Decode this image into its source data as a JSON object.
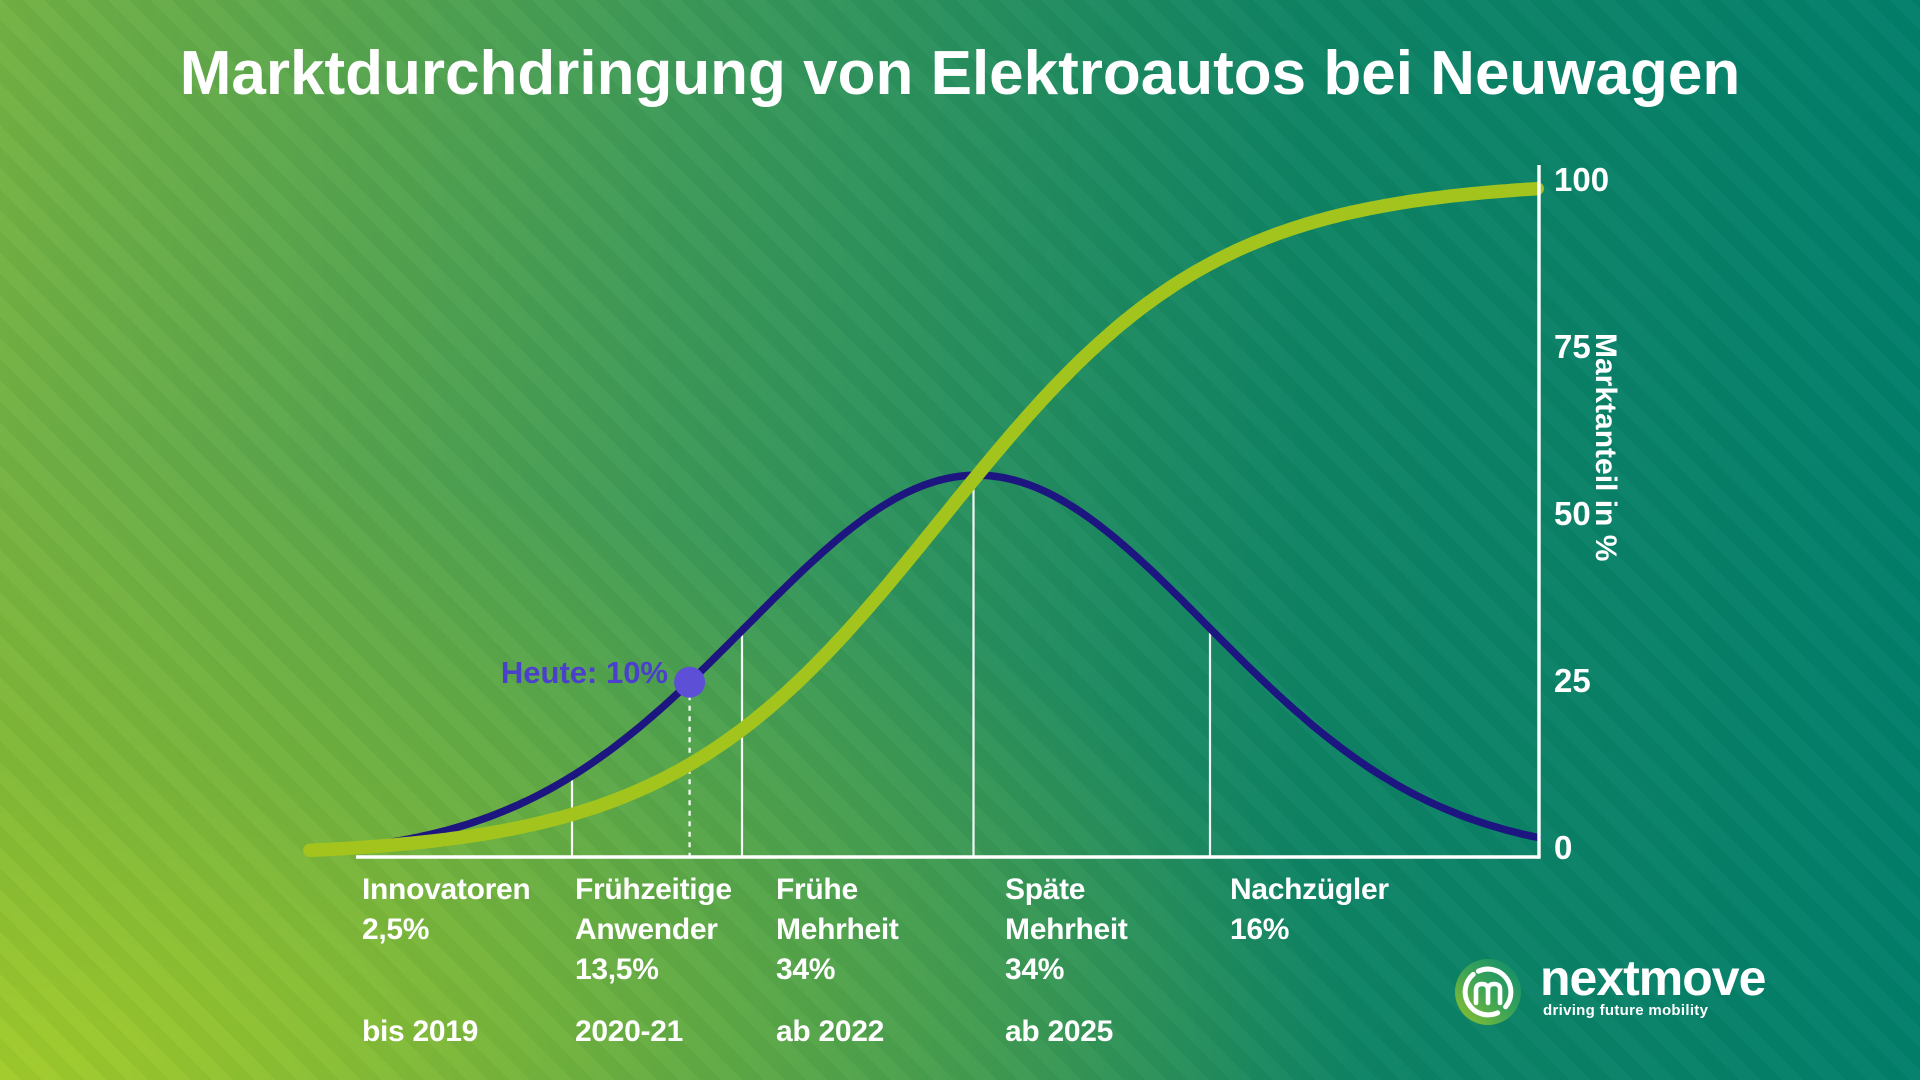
{
  "title": "Marktdurchdringung von Elektroautos bei Neuwagen",
  "colors": {
    "background_lime": "#96c228",
    "background_teal": "#02806b",
    "s_curve_lime": "#a3c41d",
    "bell_navy": "#1d1580",
    "today_purple": "#5d4fd6",
    "today_text_purple": "#4b40cb",
    "line_white": "#ffffff"
  },
  "chart_data": {
    "type": "line",
    "title": "Marktdurchdringung von Elektroautos bei Neuwagen",
    "xlabel": "",
    "ylabel": "Marktanteil in %",
    "ylim": [
      0,
      100
    ],
    "yticks": [
      100,
      75,
      50,
      25,
      0
    ],
    "grid": false,
    "legend": false,
    "series": [
      {
        "name": "Marktanteil Elektroautos (S-Kurve)",
        "color": "#a3c41d",
        "shape": "logistic",
        "k": 8.64,
        "x0_frac": 0.4954,
        "start_value": 1,
        "end_value": 99
      },
      {
        "name": "Adoptionsgruppen (Glockenkurve)",
        "color": "#1d1580",
        "shape": "gaussian",
        "mean_frac": 0.525,
        "sigma_frac": 0.1944,
        "peak_value": 56.4
      }
    ],
    "segment_boundaries_frac": [
      0.1826,
      0.3263,
      0.522,
      0.7219
    ],
    "segments": [
      {
        "name": "Innovatoren",
        "share": "2,5%",
        "period": "bis 2019",
        "label_x_frac": 0.005,
        "display_lines": [
          "Innovatoren",
          "2,5%",
          ""
        ]
      },
      {
        "name": "Frühzeitige Anwender",
        "share": "13,5%",
        "period": "2020-21",
        "label_x_frac": 0.185,
        "display_lines": [
          "Frühzeitige",
          "Anwender",
          "13,5%"
        ]
      },
      {
        "name": "Frühe Mehrheit",
        "share": "34%",
        "period": "ab 2022",
        "label_x_frac": 0.355,
        "display_lines": [
          "Frühe",
          "Mehrheit",
          "34%"
        ]
      },
      {
        "name": "Späte Mehrheit",
        "share": "34%",
        "period": "ab 2025",
        "label_x_frac": 0.549,
        "display_lines": [
          "Späte",
          "Mehrheit",
          "34%"
        ]
      },
      {
        "name": "Nachzügler",
        "share": "16%",
        "period": "",
        "label_x_frac": 0.739,
        "display_lines": [
          "Nachzügler",
          "16%",
          ""
        ]
      }
    ],
    "today": {
      "label": "Heute: 10%",
      "value": "10%",
      "x_frac": 0.282
    }
  },
  "logo": {
    "brand": "nextmove",
    "tagline": "driving future mobility"
  }
}
